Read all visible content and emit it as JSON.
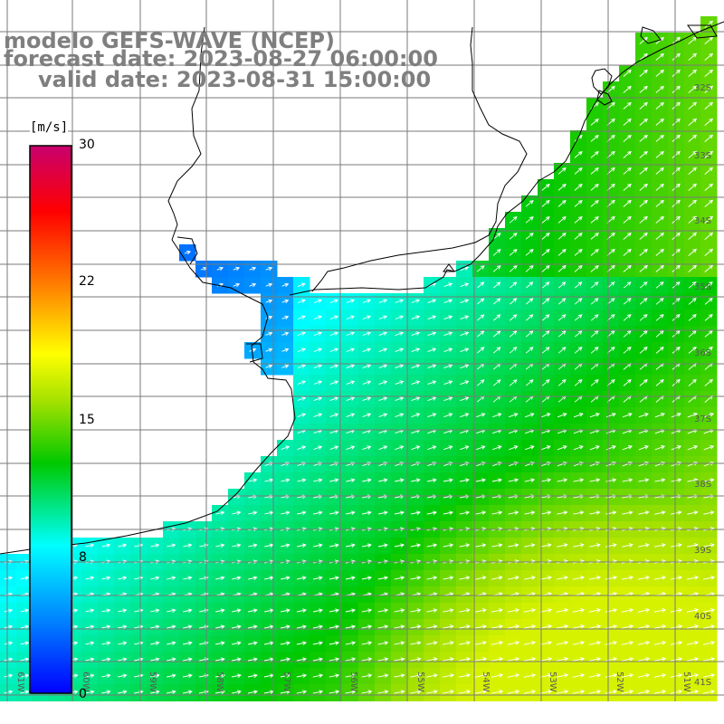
{
  "title": {
    "line1": "modelo GEFS-WAVE (NCEP)",
    "line2": "forecast date: 2023-08-27 06:00:00",
    "line3": "valid date: 2023-08-31 15:00:00"
  },
  "colorbar": {
    "unit": "[m/s]",
    "ticks": [
      "30",
      "22",
      "15",
      "8",
      "0"
    ],
    "tick_values": [
      30,
      22,
      15,
      8,
      0
    ],
    "range": [
      0,
      30
    ],
    "colors": [
      "#0000ff",
      "#0080ff",
      "#00ffff",
      "#00ff00",
      "#ffff00",
      "#ff8000",
      "#ff0000",
      "#c0006c"
    ]
  },
  "axes": {
    "lat_labels": [
      "32S",
      "33S",
      "34S",
      "35S",
      "36S",
      "37S",
      "38S",
      "39S",
      "40S",
      "41S"
    ],
    "lon_labels": [
      "61W",
      "60W",
      "59W",
      "58W",
      "57W",
      "56W",
      "55W",
      "54W",
      "53W",
      "52W",
      "51W"
    ]
  },
  "map_colors": {
    "land": "#ffffff",
    "coast": "#000000",
    "grid": "#808080",
    "arrows": "#ffffff"
  }
}
